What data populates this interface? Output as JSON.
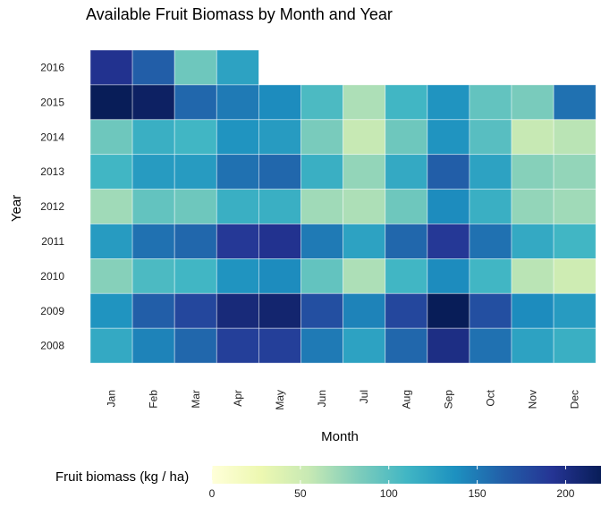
{
  "chart_data": {
    "type": "heatmap",
    "title": "Available Fruit Biomass by Month and Year",
    "xlabel": "Month",
    "ylabel": "Year",
    "categories": [
      "Jan",
      "Feb",
      "Mar",
      "Apr",
      "May",
      "Jun",
      "Jul",
      "Aug",
      "Sep",
      "Oct",
      "Nov",
      "Dec"
    ],
    "years": [
      "2016",
      "2015",
      "2014",
      "2013",
      "2012",
      "2011",
      "2010",
      "2009",
      "2008"
    ],
    "values": [
      [
        195,
        165,
        90,
        125,
        null,
        null,
        null,
        null,
        null,
        null,
        null,
        null
      ],
      [
        245,
        215,
        160,
        150,
        140,
        105,
        65,
        110,
        135,
        95,
        85,
        155
      ],
      [
        90,
        115,
        110,
        135,
        130,
        85,
        55,
        90,
        135,
        100,
        55,
        60
      ],
      [
        110,
        130,
        130,
        155,
        160,
        115,
        75,
        120,
        165,
        125,
        80,
        75
      ],
      [
        70,
        95,
        90,
        115,
        115,
        70,
        65,
        90,
        140,
        115,
        75,
        70
      ],
      [
        130,
        155,
        160,
        190,
        195,
        150,
        125,
        160,
        190,
        155,
        120,
        110
      ],
      [
        80,
        105,
        110,
        135,
        140,
        95,
        65,
        110,
        140,
        110,
        60,
        50
      ],
      [
        135,
        165,
        180,
        205,
        210,
        175,
        145,
        180,
        220,
        175,
        140,
        130
      ],
      [
        120,
        145,
        160,
        185,
        185,
        150,
        125,
        160,
        200,
        155,
        125,
        115
      ]
    ],
    "colorbar": {
      "title": "Fruit biomass (kg / ha)",
      "ticks": [
        0,
        50,
        100,
        150,
        200
      ],
      "range": [
        0,
        220
      ],
      "stops": [
        "#ffffd9",
        "#edf8b1",
        "#c7e9b4",
        "#7fcdbb",
        "#41b6c4",
        "#1d91c0",
        "#225ea8",
        "#253494",
        "#081d58"
      ]
    },
    "legend": "bottom",
    "grid": false
  }
}
